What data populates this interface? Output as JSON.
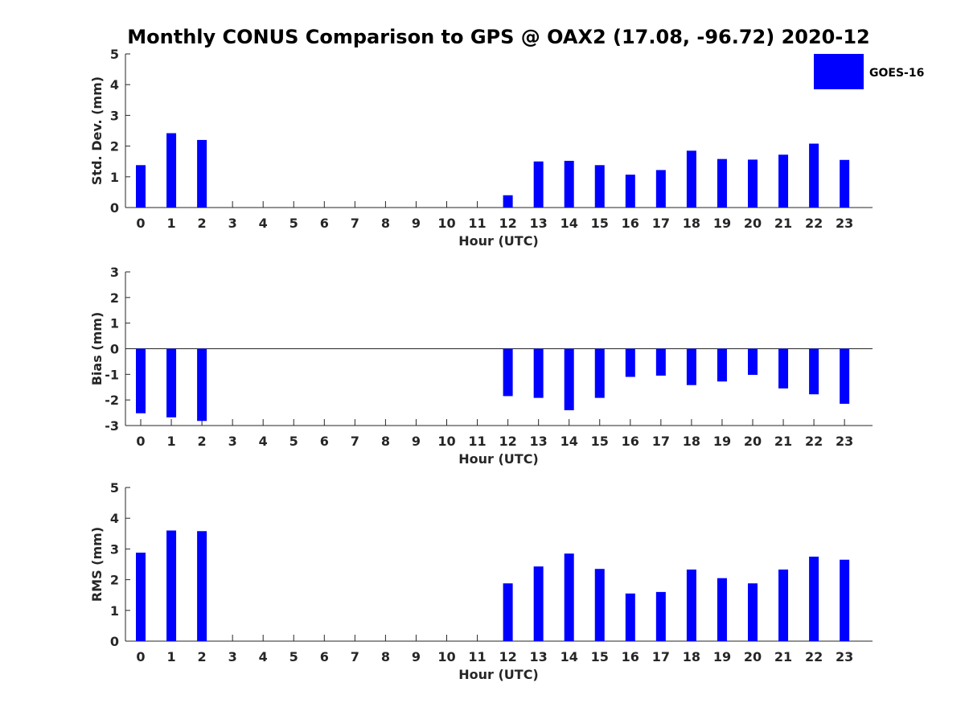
{
  "chart_data": {
    "type": "bar",
    "title": "Monthly CONUS Comparison to GPS @ OAX2 (17.08, -96.72) 2020-12",
    "legend": {
      "label": "GOES-16",
      "color": "#0000FF",
      "placement": "top-right"
    },
    "bar_color": "#0000FF",
    "subplots": [
      {
        "id": "std",
        "xlabel": "Hour (UTC)",
        "ylabel": "Std. Dev. (mm)",
        "ylim": [
          0,
          5
        ],
        "yticks": [
          "0",
          "1",
          "2",
          "3",
          "4",
          "5"
        ],
        "categories": [
          "0",
          "1",
          "2",
          "3",
          "4",
          "5",
          "6",
          "7",
          "8",
          "9",
          "10",
          "11",
          "12",
          "13",
          "14",
          "15",
          "16",
          "17",
          "18",
          "19",
          "20",
          "21",
          "22",
          "23"
        ],
        "values": [
          1.38,
          2.42,
          2.2,
          null,
          null,
          null,
          null,
          null,
          null,
          null,
          null,
          null,
          0.4,
          1.5,
          1.52,
          1.38,
          1.07,
          1.22,
          1.85,
          1.58,
          1.56,
          1.72,
          2.08,
          1.55
        ]
      },
      {
        "id": "bias",
        "xlabel": "Hour (UTC)",
        "ylabel": "Bias (mm)",
        "ylim": [
          -3,
          3
        ],
        "yticks": [
          "-3",
          "-2",
          "-1",
          "0",
          "1",
          "2",
          "3"
        ],
        "categories": [
          "0",
          "1",
          "2",
          "3",
          "4",
          "5",
          "6",
          "7",
          "8",
          "9",
          "10",
          "11",
          "12",
          "13",
          "14",
          "15",
          "16",
          "17",
          "18",
          "19",
          "20",
          "21",
          "22",
          "23"
        ],
        "values": [
          -2.52,
          -2.68,
          -2.82,
          null,
          null,
          null,
          null,
          null,
          null,
          null,
          null,
          null,
          -1.85,
          -1.92,
          -2.4,
          -1.92,
          -1.1,
          -1.05,
          -1.42,
          -1.28,
          -1.02,
          -1.55,
          -1.78,
          -2.15
        ]
      },
      {
        "id": "rms",
        "xlabel": "Hour (UTC)",
        "ylabel": "RMS (mm)",
        "ylim": [
          0,
          5
        ],
        "yticks": [
          "0",
          "1",
          "2",
          "3",
          "4",
          "5"
        ],
        "categories": [
          "0",
          "1",
          "2",
          "3",
          "4",
          "5",
          "6",
          "7",
          "8",
          "9",
          "10",
          "11",
          "12",
          "13",
          "14",
          "15",
          "16",
          "17",
          "18",
          "19",
          "20",
          "21",
          "22",
          "23"
        ],
        "values": [
          2.88,
          3.6,
          3.58,
          null,
          null,
          null,
          null,
          null,
          null,
          null,
          null,
          null,
          1.88,
          2.43,
          2.85,
          2.35,
          1.55,
          1.6,
          2.33,
          2.05,
          1.88,
          2.33,
          2.75,
          2.65
        ]
      }
    ]
  }
}
